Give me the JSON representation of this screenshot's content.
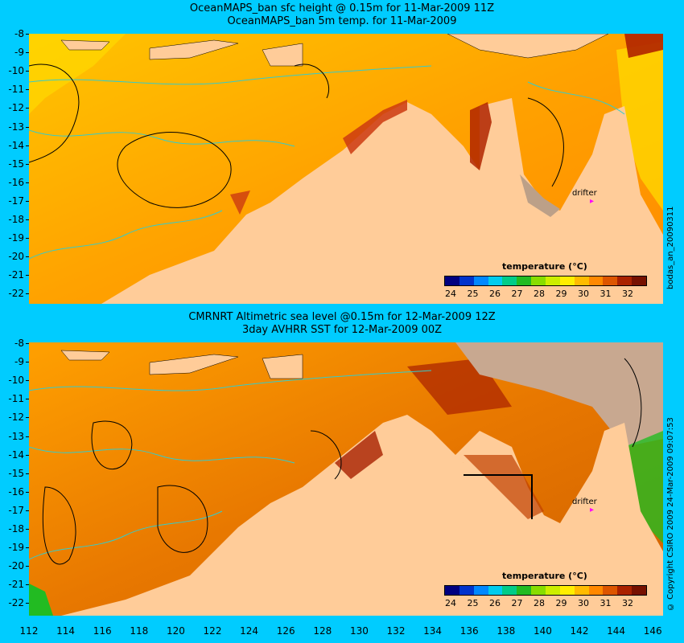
{
  "top": {
    "title_line1": "OceanMAPS_ban sfc height @ 0.15m for 11-Mar-2009 11Z",
    "title_line2": "OceanMAPS_ban 5m temp. for 11-Mar-2009",
    "side_label": "bodas_an_20090311"
  },
  "bottom": {
    "title_line1": "CMRNRT Altimetric sea level  @0.15m  for 12-Mar-2009 12Z",
    "title_line2": "3day AVHRR SST for 12-Mar-2009 00Z",
    "side_label": "© Copyright CSIRO 2009  24-Mar-2009 09:07:53"
  },
  "y_labels": [
    "-8",
    "-9",
    "-10",
    "-11",
    "-12",
    "-13",
    "-14",
    "-15",
    "-16",
    "-17",
    "-18",
    "-19",
    "-20",
    "-21",
    "-22"
  ],
  "x_labels": [
    "112",
    "114",
    "116",
    "118",
    "120",
    "122",
    "124",
    "126",
    "128",
    "130",
    "132",
    "134",
    "136",
    "138",
    "140",
    "142",
    "144",
    "146"
  ],
  "colorbar": {
    "title": "temperature (°C)",
    "labels": [
      "24",
      "25",
      "26",
      "27",
      "28",
      "29",
      "30",
      "31",
      "32"
    ],
    "colors": [
      "#000080",
      "#0033cc",
      "#0088ff",
      "#00ccee",
      "#00cc88",
      "#22bb22",
      "#88dd00",
      "#ccee00",
      "#ffee00",
      "#ffbb00",
      "#ff8800",
      "#dd5500",
      "#aa2200",
      "#771100"
    ]
  },
  "drifter_label": "drifter",
  "drifter_marker": "▸",
  "colors": {
    "background": "#00ccff",
    "land": "#ffcc99",
    "sea_mid": "#ffb300",
    "sea_warm": "#e06000",
    "sea_hot": "#a82000",
    "contour_cyan": "#33cccc",
    "no_data": "#c8a890"
  }
}
